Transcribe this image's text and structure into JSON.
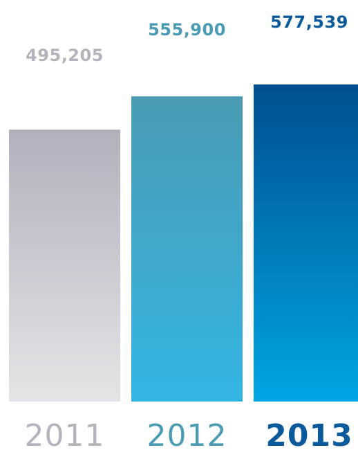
{
  "chart_data": {
    "type": "bar",
    "title": "",
    "xlabel": "",
    "ylabel": "",
    "categories": [
      "2011",
      "2012",
      "2013"
    ],
    "values": [
      495205,
      555900,
      577539
    ],
    "value_labels": [
      "495,205",
      "555,900",
      "577,539"
    ],
    "ylim": [
      0,
      577539
    ],
    "grid": false,
    "legend": "none",
    "bar_gradients": [
      {
        "top": "#b2b0bb",
        "bottom": "#e4e4e8"
      },
      {
        "top": "#4a9bb3",
        "bottom": "#33b5e3"
      },
      {
        "top": "#004f8f",
        "bottom": "#00a6e4"
      }
    ],
    "label_colors": [
      "#b4b3bc",
      "#4a9bb3",
      "#0a5a9c"
    ]
  }
}
